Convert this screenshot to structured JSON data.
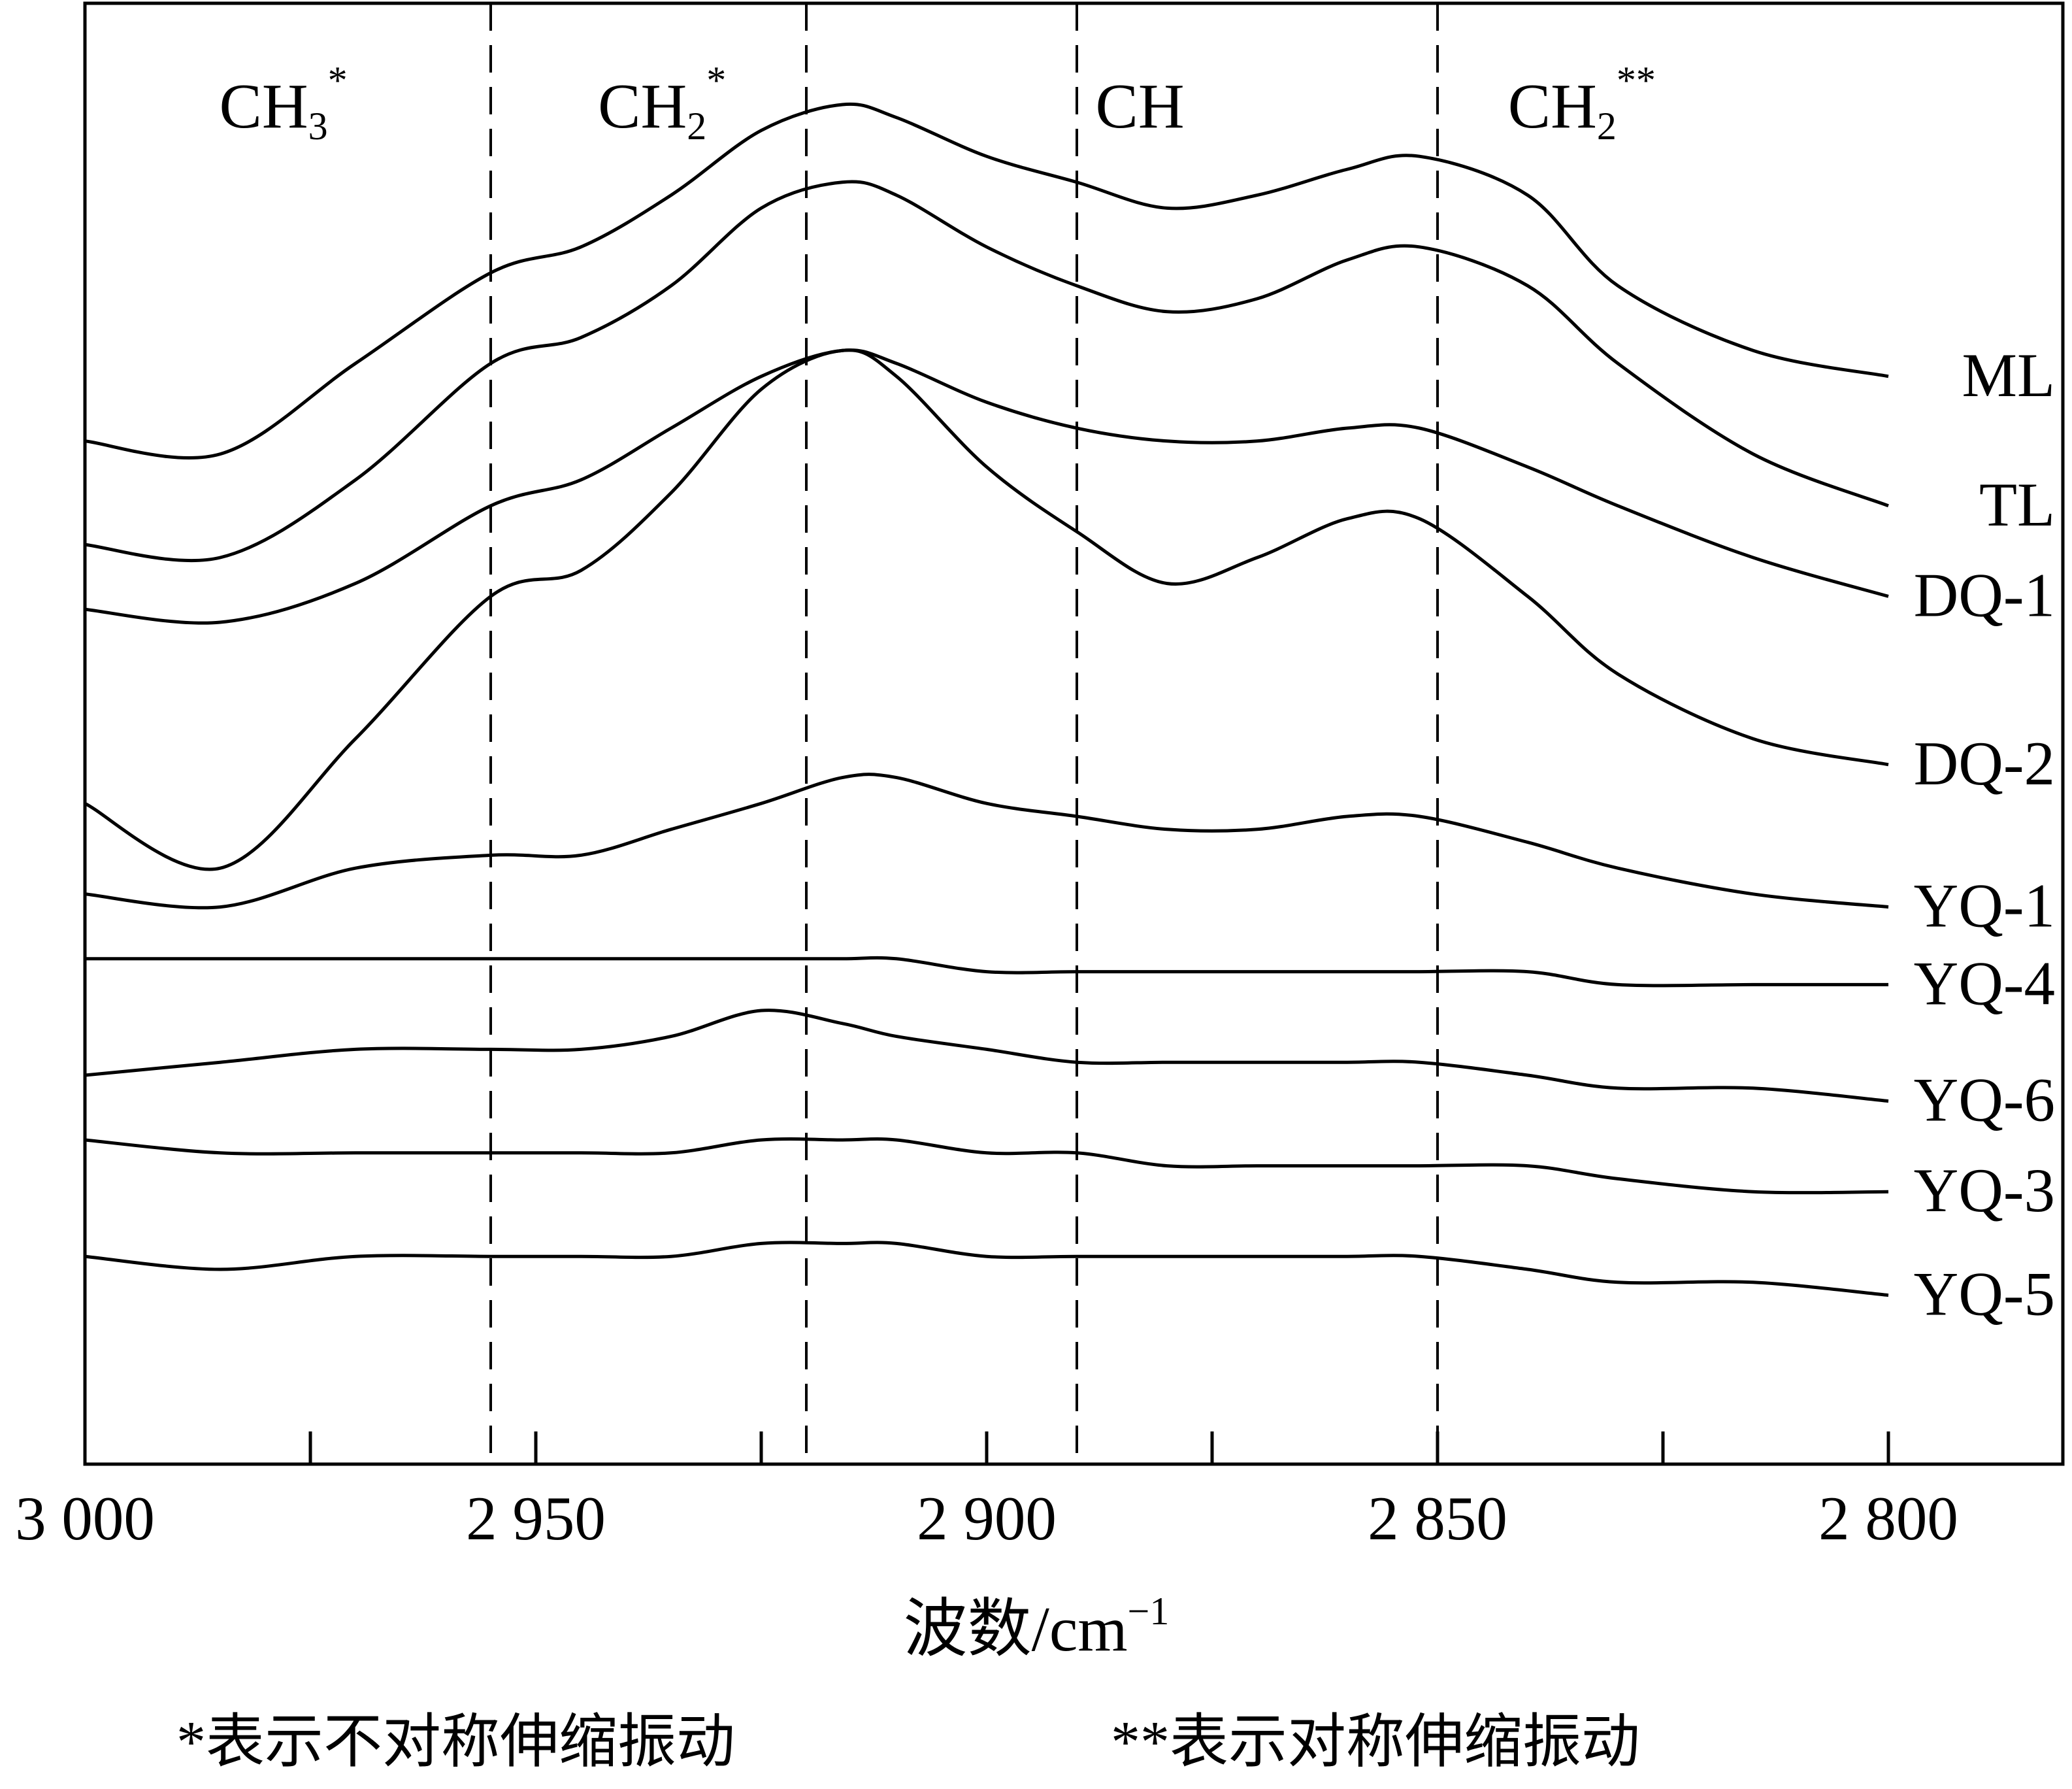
{
  "chart_data": {
    "type": "line",
    "xlabel": "波数/cm",
    "xlabel_sup": "−1",
    "xlim": [
      3000,
      2800
    ],
    "x_reversed": true,
    "xticks": [
      3000,
      2950,
      2900,
      2850,
      2800
    ],
    "xtick_labels": [
      "3 000",
      "2 950",
      "2 900",
      "2 850",
      "2 800"
    ],
    "ylabel": "",
    "y_unit": "stacked absorbance (offset)",
    "grid": false,
    "reference_lines": [
      {
        "x": 2955,
        "label_base": "CH",
        "label_sub": "3",
        "label_sup": "*",
        "label_x": 2978
      },
      {
        "x": 2920,
        "label_base": "CH",
        "label_sub": "2",
        "label_sup": "*",
        "label_x": 2936
      },
      {
        "x": 2890,
        "label_base": "CH",
        "label_sub": "",
        "label_sup": "",
        "label_x": 2883
      },
      {
        "x": 2850,
        "label_base": "CH",
        "label_sub": "2",
        "label_sup": "**",
        "label_x": 2834
      }
    ],
    "series_x": [
      3000,
      2985,
      2970,
      2955,
      2945,
      2935,
      2925,
      2916,
      2910,
      2900,
      2890,
      2880,
      2870,
      2860,
      2852,
      2840,
      2830,
      2815,
      2800
    ],
    "series": [
      {
        "name": "ML",
        "values": [
          0.74,
          0.73,
          0.8,
          0.87,
          0.89,
          0.93,
          0.98,
          1.0,
          0.99,
          0.96,
          0.94,
          0.92,
          0.93,
          0.95,
          0.96,
          0.93,
          0.86,
          0.81,
          0.79
        ]
      },
      {
        "name": "TL",
        "values": [
          0.66,
          0.65,
          0.71,
          0.8,
          0.82,
          0.86,
          0.92,
          0.94,
          0.93,
          0.89,
          0.86,
          0.84,
          0.85,
          0.88,
          0.89,
          0.86,
          0.8,
          0.73,
          0.69
        ]
      },
      {
        "name": "DQ-1",
        "values": [
          0.61,
          0.6,
          0.63,
          0.69,
          0.71,
          0.75,
          0.79,
          0.81,
          0.8,
          0.77,
          0.75,
          0.74,
          0.74,
          0.75,
          0.75,
          0.72,
          0.69,
          0.65,
          0.62
        ]
      },
      {
        "name": "DQ-2",
        "values": [
          0.46,
          0.41,
          0.51,
          0.62,
          0.64,
          0.7,
          0.78,
          0.81,
          0.79,
          0.72,
          0.67,
          0.63,
          0.65,
          0.68,
          0.68,
          0.62,
          0.56,
          0.51,
          0.49
        ]
      },
      {
        "name": "YQ-1",
        "values": [
          0.39,
          0.38,
          0.41,
          0.42,
          0.42,
          0.44,
          0.46,
          0.48,
          0.48,
          0.46,
          0.45,
          0.44,
          0.44,
          0.45,
          0.45,
          0.43,
          0.41,
          0.39,
          0.38
        ]
      },
      {
        "name": "YQ-4",
        "values": [
          0.34,
          0.34,
          0.34,
          0.34,
          0.34,
          0.34,
          0.34,
          0.34,
          0.34,
          0.33,
          0.33,
          0.33,
          0.33,
          0.33,
          0.33,
          0.33,
          0.32,
          0.32,
          0.32
        ]
      },
      {
        "name": "YQ-6",
        "values": [
          0.25,
          0.26,
          0.27,
          0.27,
          0.27,
          0.28,
          0.3,
          0.29,
          0.28,
          0.27,
          0.26,
          0.26,
          0.26,
          0.26,
          0.26,
          0.25,
          0.24,
          0.24,
          0.23
        ]
      },
      {
        "name": "YQ-3",
        "values": [
          0.2,
          0.19,
          0.19,
          0.19,
          0.19,
          0.19,
          0.2,
          0.2,
          0.2,
          0.19,
          0.19,
          0.18,
          0.18,
          0.18,
          0.18,
          0.18,
          0.17,
          0.16,
          0.16
        ]
      },
      {
        "name": "YQ-5",
        "values": [
          0.11,
          0.1,
          0.11,
          0.11,
          0.11,
          0.11,
          0.12,
          0.12,
          0.12,
          0.11,
          0.11,
          0.11,
          0.11,
          0.11,
          0.11,
          0.1,
          0.09,
          0.09,
          0.08
        ]
      }
    ],
    "footnotes": [
      "*表示不对称伸缩振动",
      "**表示对称伸缩振动"
    ]
  },
  "colors": {
    "line": "#000000",
    "background": "#ffffff"
  }
}
